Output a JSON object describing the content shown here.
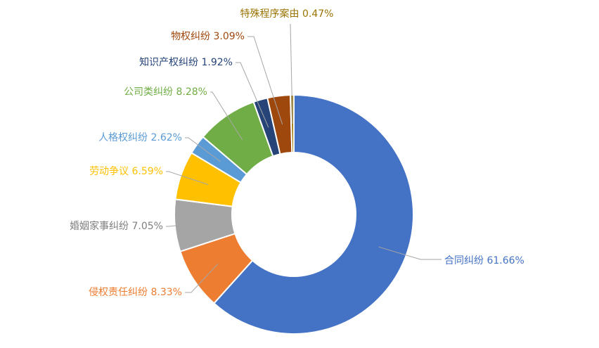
{
  "chart_data": {
    "type": "pie",
    "donut": true,
    "legend": "none",
    "categories": [
      "合同纠纷",
      "侵权责任纠纷",
      "婚姻家事纠纷",
      "劳动争议",
      "人格权纠纷",
      "公司类纠纷",
      "知识产权纠纷",
      "物权纠纷",
      "特殊程序案由"
    ],
    "values": [
      61.66,
      8.33,
      7.05,
      6.59,
      2.62,
      8.28,
      1.92,
      3.09,
      0.47
    ],
    "labels": [
      "合同纠纷 61.66%",
      "侵权责任纠纷 8.33%",
      "婚姻家事纠纷 7.05%",
      "劳动争议 6.59%",
      "人格权纠纷 2.62%",
      "公司类纠纷 8.28%",
      "知识产权纠纷 1.92%",
      "物权纠纷 3.09%",
      "特殊程序案由 0.47%"
    ],
    "colors": [
      "#4472C4",
      "#ED7D31",
      "#A5A5A5",
      "#FFC000",
      "#5B9BD5",
      "#70AD47",
      "#264478",
      "#9E480E",
      "#997300"
    ]
  }
}
